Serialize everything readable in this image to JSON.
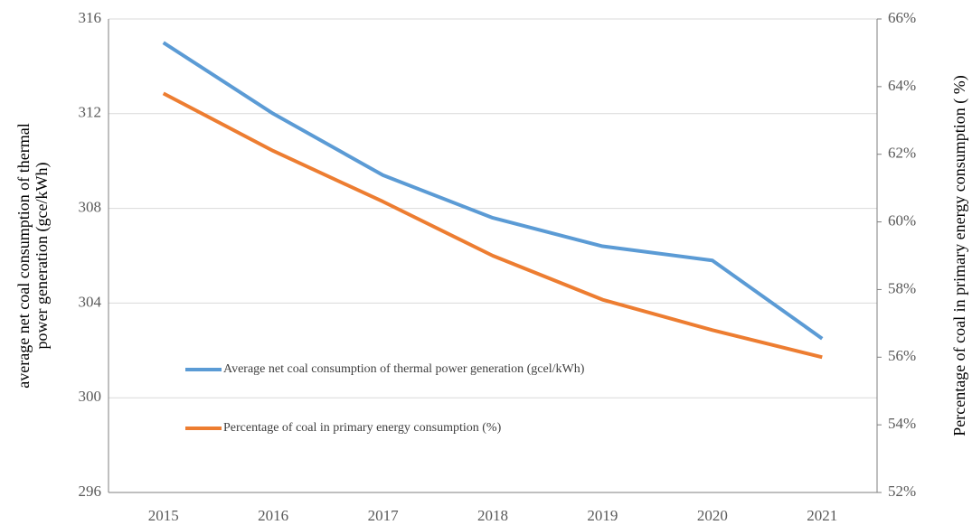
{
  "chart_data": {
    "type": "line",
    "categories": [
      "2015",
      "2016",
      "2017",
      "2018",
      "2019",
      "2020",
      "2021"
    ],
    "series": [
      {
        "name": "Average net coal consumption of thermal power generation (gcel/kWh)",
        "color": "#5b9bd5",
        "axis": "y",
        "values": [
          315.0,
          312.0,
          309.4,
          307.6,
          306.4,
          305.8,
          302.5
        ]
      },
      {
        "name": "Percentage of coal in primary energy consumption (%)",
        "color": "#ed7d31",
        "axis": "y2",
        "values": [
          63.8,
          62.1,
          60.6,
          59.0,
          57.7,
          56.8,
          56.0
        ]
      }
    ],
    "y_label": [
      "average net coal consumption of thermal",
      "power generation (gce/kWh)"
    ],
    "y2_label": "Percentage of coal in primary energy consumption ( %)",
    "ylim": [
      296,
      316
    ],
    "yticks": [
      296,
      300,
      304,
      308,
      312,
      316
    ],
    "y2lim": [
      52,
      66
    ],
    "y2ticks": [
      {
        "value": 52,
        "label": "52%"
      },
      {
        "value": 54,
        "label": "54%"
      },
      {
        "value": 56,
        "label": "56%"
      },
      {
        "value": 58,
        "label": "58%"
      },
      {
        "value": 60,
        "label": "60%"
      },
      {
        "value": 62,
        "label": "62%"
      },
      {
        "value": 64,
        "label": "64%"
      },
      {
        "value": 66,
        "label": "66%"
      }
    ],
    "grid": true
  }
}
